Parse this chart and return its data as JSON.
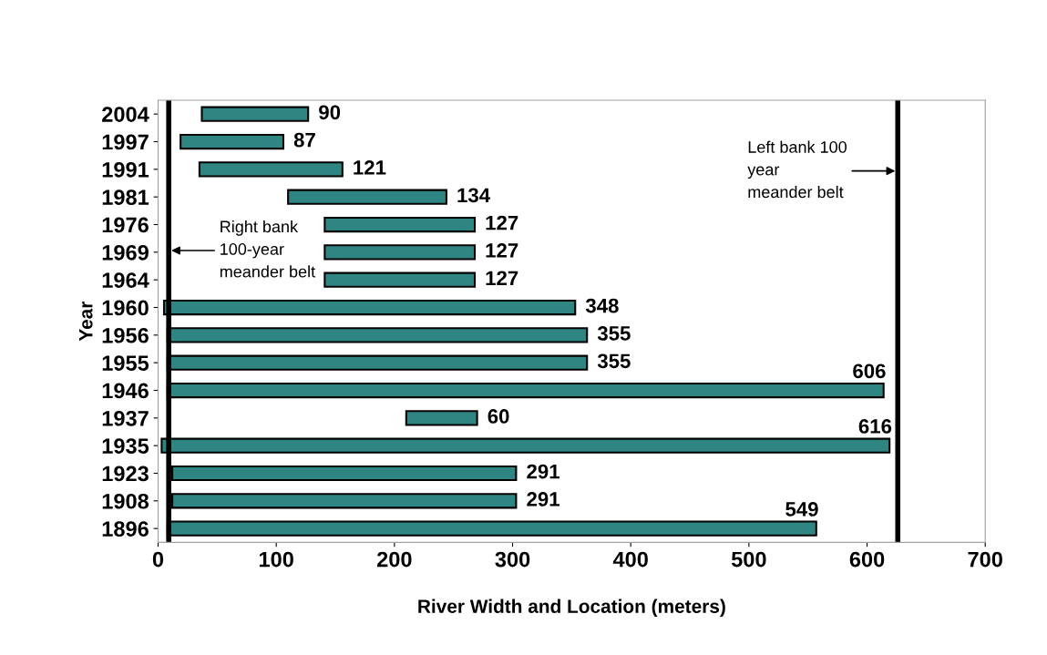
{
  "chart_data": {
    "type": "bar",
    "orientation": "horizontal",
    "xlabel": "River Width and Location (meters)",
    "ylabel": "Year",
    "categories": [
      "2004",
      "1997",
      "1991",
      "1981",
      "1976",
      "1969",
      "1964",
      "1960",
      "1956",
      "1955",
      "1946",
      "1937",
      "1935",
      "1923",
      "1908",
      "1896"
    ],
    "base": [
      37,
      19,
      35,
      110,
      141,
      141,
      141,
      5,
      8,
      8,
      8,
      210,
      3,
      12,
      12,
      8
    ],
    "values": [
      90,
      87,
      121,
      134,
      127,
      127,
      127,
      348,
      355,
      355,
      606,
      60,
      616,
      291,
      291,
      549
    ],
    "color": "#2e8582",
    "data_labels": true,
    "xlim": [
      0,
      700
    ],
    "xticks": [
      0,
      100,
      200,
      300,
      400,
      500,
      600,
      700
    ],
    "grid": false,
    "ref_lines": [
      {
        "axis": "x",
        "value": 9,
        "label": "Right bank\n100-year\nmeander belt",
        "color": "#000000"
      },
      {
        "axis": "x",
        "value": 626,
        "label": "Left bank 100\nyear\nmeander belt",
        "color": "#000000"
      }
    ]
  }
}
